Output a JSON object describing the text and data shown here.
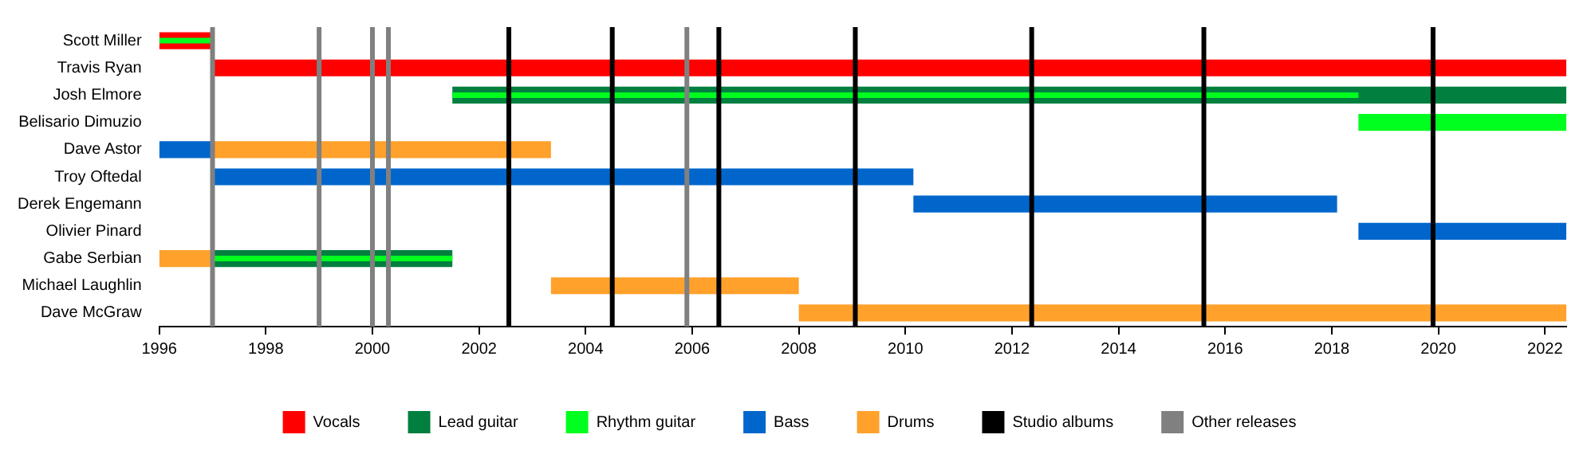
{
  "chart_data": {
    "type": "bar",
    "orientation": "horizontal",
    "legend": "bottom",
    "grid": false,
    "categories": [
      "Scott Miller",
      "Travis Ryan",
      "Josh Elmore",
      "Belisario Dimuzio",
      "Dave Astor",
      "Troy Oftedal",
      "Derek Engemann",
      "Olivier Pinard",
      "Gabe Serbian",
      "Michael Laughlin",
      "Dave McGraw"
    ],
    "xlim": [
      1996,
      2022.4
    ],
    "xticks": [
      1996,
      1998,
      2000,
      2002,
      2004,
      2006,
      2008,
      2010,
      2012,
      2014,
      2016,
      2018,
      2020,
      2022
    ],
    "series": [
      {
        "name": "Vocals",
        "color": "#ff0000",
        "base": [
          1996,
          1997,
          null,
          null,
          null,
          null,
          null,
          null,
          null,
          null,
          null
        ],
        "values": [
          1,
          25.4,
          null,
          null,
          null,
          null,
          null,
          null,
          null,
          null,
          null
        ]
      },
      {
        "name": "Lead guitar",
        "color": "#007f3f",
        "base": [
          null,
          null,
          2001.5,
          null,
          null,
          null,
          null,
          null,
          1997,
          null,
          null
        ],
        "values": [
          null,
          null,
          20.9,
          null,
          null,
          null,
          null,
          null,
          4.5,
          null,
          null
        ]
      },
      {
        "name": "Rhythm guitar",
        "color": "#00ff1e",
        "base": [
          1996,
          null,
          2001.5,
          2018.5,
          null,
          null,
          null,
          null,
          1997,
          null,
          null
        ],
        "values": [
          1,
          null,
          17,
          3.9,
          null,
          null,
          null,
          null,
          4.5,
          null,
          null
        ]
      },
      {
        "name": "Bass",
        "color": "#0066cc",
        "base": [
          null,
          null,
          null,
          null,
          1996,
          1997,
          2010.15,
          2018.5,
          null,
          null,
          null
        ],
        "values": [
          null,
          null,
          null,
          null,
          1,
          13.15,
          7.95,
          3.9,
          null,
          null,
          null
        ]
      },
      {
        "name": "Drums",
        "color": "#ffa12b",
        "base": [
          null,
          null,
          null,
          null,
          1997,
          null,
          null,
          null,
          1996,
          2003.35,
          2008
        ],
        "values": [
          null,
          null,
          null,
          null,
          6.35,
          null,
          null,
          null,
          1,
          4.65,
          14.4
        ]
      }
    ],
    "ref_lines": [
      {
        "axis": "x",
        "value": 2002.56,
        "label": "Studio albums",
        "color": "#000000"
      },
      {
        "axis": "x",
        "value": 2004.5,
        "color": "#000000"
      },
      {
        "axis": "x",
        "value": 2006.5,
        "color": "#000000"
      },
      {
        "axis": "x",
        "value": 2009.06,
        "color": "#000000"
      },
      {
        "axis": "x",
        "value": 2012.37,
        "color": "#000000"
      },
      {
        "axis": "x",
        "value": 2015.6,
        "color": "#000000"
      },
      {
        "axis": "x",
        "value": 2019.9,
        "color": "#000000"
      },
      {
        "axis": "x",
        "value": 1997,
        "label": "Other releases",
        "color": "#808080"
      },
      {
        "axis": "x",
        "value": 1999,
        "color": "#808080"
      },
      {
        "axis": "x",
        "value": 2000,
        "color": "#808080"
      },
      {
        "axis": "x",
        "value": 2000.3,
        "color": "#808080"
      },
      {
        "axis": "x",
        "value": 2005.9,
        "color": "#808080"
      }
    ]
  }
}
